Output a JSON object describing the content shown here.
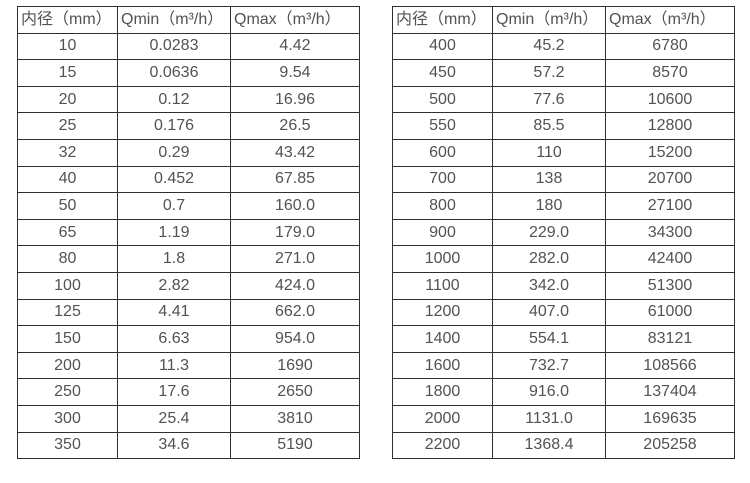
{
  "page": {
    "background": "#ffffff",
    "border_color": "#2f2f2f",
    "text_color": "#525254"
  },
  "tables": [
    {
      "headers": [
        "内径（mm）",
        "Qmin（m³/h）",
        "Qmax（m³/h）"
      ],
      "rows": [
        [
          "10",
          "0.0283",
          "4.42"
        ],
        [
          "15",
          "0.0636",
          "9.54"
        ],
        [
          "20",
          "0.12",
          "16.96"
        ],
        [
          "25",
          "0.176",
          "26.5"
        ],
        [
          "32",
          "0.29",
          "43.42"
        ],
        [
          "40",
          "0.452",
          "67.85"
        ],
        [
          "50",
          "0.7",
          "160.0"
        ],
        [
          "65",
          "1.19",
          "179.0"
        ],
        [
          "80",
          "1.8",
          "271.0"
        ],
        [
          "100",
          "2.82",
          "424.0"
        ],
        [
          "125",
          "4.41",
          "662.0"
        ],
        [
          "150",
          "6.63",
          "954.0"
        ],
        [
          "200",
          "11.3",
          "1690"
        ],
        [
          "250",
          "17.6",
          "2650"
        ],
        [
          "300",
          "25.4",
          "3810"
        ],
        [
          "350",
          "34.6",
          "5190"
        ]
      ]
    },
    {
      "headers": [
        "内径（mm）",
        "Qmin（m³/h）",
        "Qmax（m³/h）"
      ],
      "rows": [
        [
          "400",
          "45.2",
          "6780"
        ],
        [
          "450",
          "57.2",
          "8570"
        ],
        [
          "500",
          "77.6",
          "10600"
        ],
        [
          "550",
          "85.5",
          "12800"
        ],
        [
          "600",
          "110",
          "15200"
        ],
        [
          "700",
          "138",
          "20700"
        ],
        [
          "800",
          "180",
          "27100"
        ],
        [
          "900",
          "229.0",
          "34300"
        ],
        [
          "1000",
          "282.0",
          "42400"
        ],
        [
          "1100",
          "342.0",
          "51300"
        ],
        [
          "1200",
          "407.0",
          "61000"
        ],
        [
          "1400",
          "554.1",
          "83121"
        ],
        [
          "1600",
          "732.7",
          "108566"
        ],
        [
          "1800",
          "916.0",
          "137404"
        ],
        [
          "2000",
          "1131.0",
          "169635"
        ],
        [
          "2200",
          "1368.4",
          "205258"
        ]
      ]
    }
  ]
}
